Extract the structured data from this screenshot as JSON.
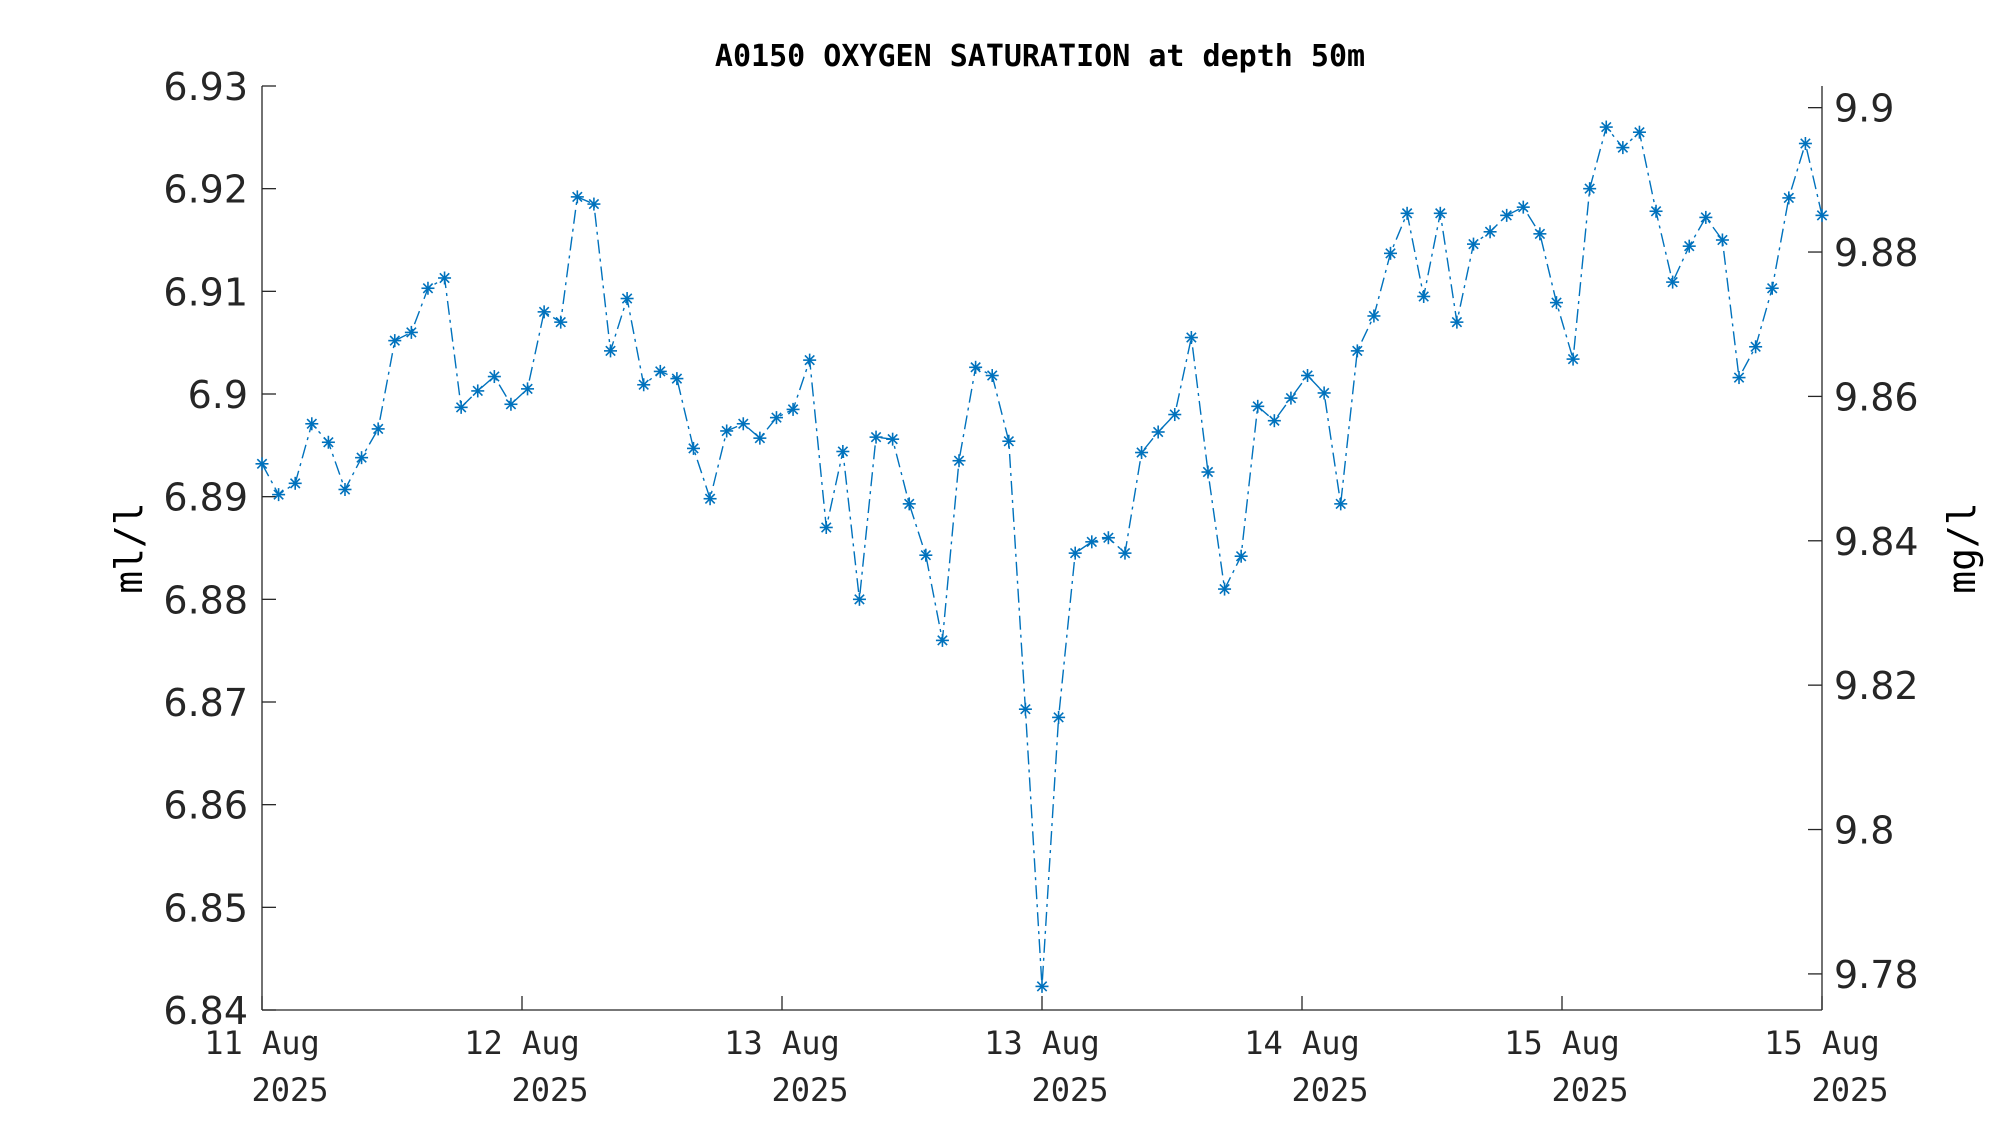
{
  "chart_data": {
    "type": "line",
    "title": "A0150 OXYGEN SATURATION at depth 50m",
    "ylabel": "ml/l",
    "y2label": "mg/l",
    "ylim": [
      6.84,
      6.93
    ],
    "y2lim": [
      9.775,
      9.903
    ],
    "yticks": [
      "6.84",
      "6.85",
      "6.86",
      "6.87",
      "6.88",
      "6.89",
      "6.9",
      "6.91",
      "6.92",
      "6.93"
    ],
    "y2ticks": [
      "9.78",
      "9.8",
      "9.82",
      "9.84",
      "9.86",
      "9.88",
      "9.9"
    ],
    "xticks": [
      {
        "day": "11 Aug",
        "year": "2025"
      },
      {
        "day": "12 Aug",
        "year": "2025"
      },
      {
        "day": "13 Aug",
        "year": "2025"
      },
      {
        "day": "13 Aug",
        "year": "2025"
      },
      {
        "day": "14 Aug",
        "year": "2025"
      },
      {
        "day": "15 Aug",
        "year": "2025"
      },
      {
        "day": "15 Aug",
        "year": "2025"
      }
    ],
    "grid": false,
    "legend": "none",
    "marker": "asterisk",
    "line_style": "dash-dot",
    "color": "#0072bd",
    "series": [
      {
        "values": [
          6.8932,
          6.8902,
          6.8913,
          6.8971,
          6.8953,
          6.8907,
          6.8938,
          6.8966,
          6.9052,
          6.906,
          6.9103,
          6.9113,
          6.8987,
          6.9003,
          6.9017,
          6.899,
          6.9005,
          6.908,
          6.907,
          6.9192,
          6.9185,
          6.9042,
          6.9093,
          6.9009,
          6.9022,
          6.9015,
          6.8947,
          6.8898,
          6.8964,
          6.8971,
          6.8957,
          6.8977,
          6.8985,
          6.9033,
          6.887,
          6.8944,
          6.88,
          6.8958,
          6.8956,
          6.8893,
          6.8843,
          6.876,
          6.8935,
          6.9026,
          6.9018,
          6.8954,
          6.8693,
          6.8423,
          6.8685,
          6.8845,
          6.8856,
          6.886,
          6.8845,
          6.8943,
          6.8963,
          6.898,
          6.9055,
          6.8924,
          6.881,
          6.8842,
          6.8988,
          6.8974,
          6.8996,
          6.9018,
          6.9001,
          6.8893,
          6.9042,
          6.9076,
          6.9137,
          6.9176,
          6.9095,
          6.9176,
          6.907,
          6.9146,
          6.9158,
          6.9174,
          6.9182,
          6.9156,
          6.9089,
          6.9034,
          6.92,
          6.926,
          6.924,
          6.9255,
          6.9178,
          6.9109,
          6.9144,
          6.9172,
          6.915,
          6.9016,
          6.9046,
          6.9103,
          6.9191,
          6.9244,
          6.9174
        ]
      }
    ]
  }
}
